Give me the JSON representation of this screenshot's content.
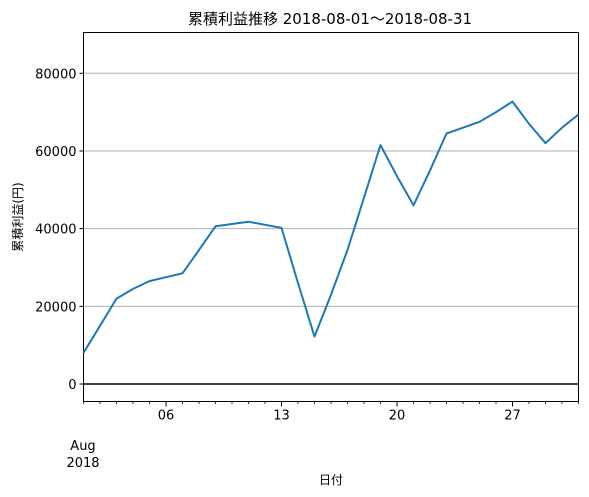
{
  "chart_data": {
    "type": "line",
    "title": "累積利益推移 2018-08-01〜2018-08-31",
    "xlabel": "日付",
    "ylabel": "累積利益(円)",
    "x": [
      "2018-08-01",
      "2018-08-02",
      "2018-08-03",
      "2018-08-04",
      "2018-08-05",
      "2018-08-06",
      "2018-08-07",
      "2018-08-08",
      "2018-08-09",
      "2018-08-10",
      "2018-08-11",
      "2018-08-12",
      "2018-08-13",
      "2018-08-14",
      "2018-08-15",
      "2018-08-16",
      "2018-08-17",
      "2018-08-18",
      "2018-08-19",
      "2018-08-20",
      "2018-08-21",
      "2018-08-22",
      "2018-08-23",
      "2018-08-24",
      "2018-08-25",
      "2018-08-26",
      "2018-08-27",
      "2018-08-28",
      "2018-08-29",
      "2018-08-30",
      "2018-08-31"
    ],
    "series": [
      {
        "name": "",
        "values": [
          8000,
          15000,
          22000,
          24500,
          26500,
          27500,
          28500,
          34500,
          40600,
          41200,
          41800,
          41000,
          40200,
          26000,
          12200,
          23000,
          34500,
          48000,
          61500,
          53500,
          46000,
          55000,
          64500,
          66000,
          67500,
          70000,
          72700,
          67000,
          62000,
          66000,
          69400
        ]
      }
    ],
    "ylim": [
      -4500,
      90500
    ],
    "yticks": [
      0,
      20000,
      40000,
      60000,
      80000
    ],
    "ytick_labels": [
      "0",
      "20000",
      "40000",
      "60000",
      "80000"
    ],
    "xtick_labels": [
      "06",
      "13",
      "20",
      "27"
    ],
    "xtick_dates": [
      "2018-08-06",
      "2018-08-13",
      "2018-08-20",
      "2018-08-27"
    ],
    "x_offset_label": {
      "month": "Aug",
      "year": "2018"
    },
    "grid": "y",
    "zero_line": 0,
    "line_color": "#1f77b4"
  }
}
